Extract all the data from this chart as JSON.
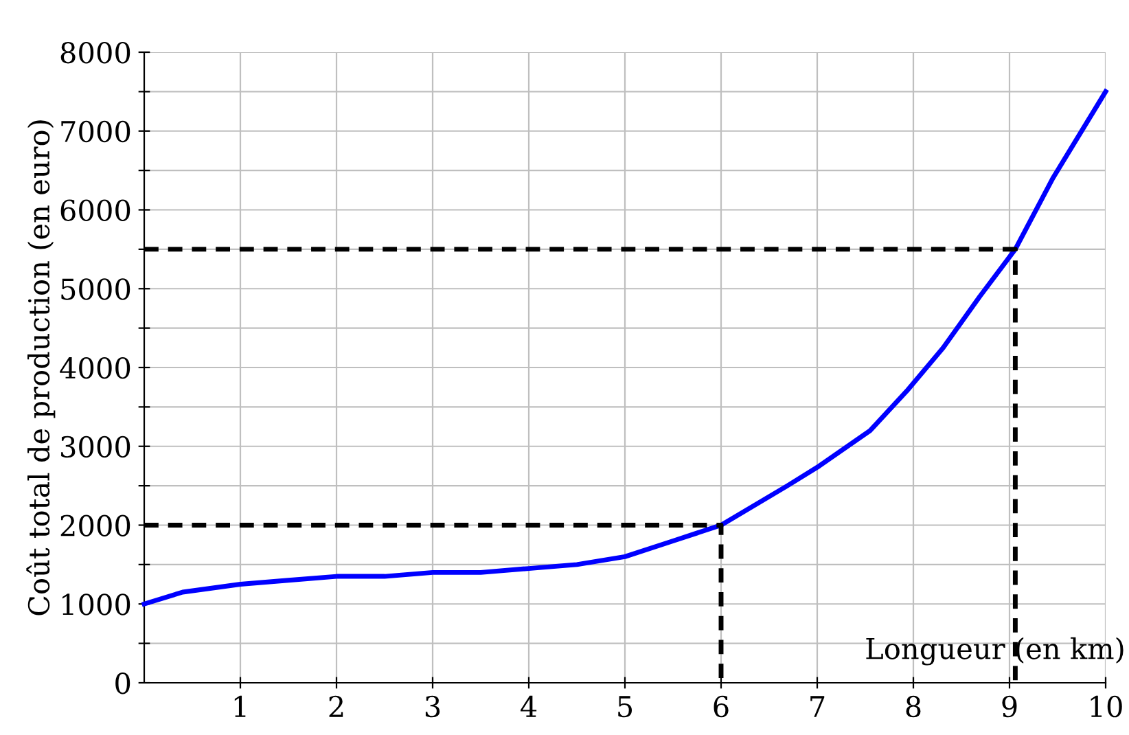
{
  "chart_data": {
    "type": "line",
    "xlabel": "Longueur (en km)",
    "ylabel": "Coût total de production (en euro)",
    "xlim": [
      0,
      10
    ],
    "ylim": [
      0,
      8000
    ],
    "xticks": [
      1,
      2,
      3,
      4,
      5,
      6,
      7,
      8,
      9,
      10
    ],
    "yticks": [
      0,
      {
        "value": 500,
        "label": null
      },
      1000,
      {
        "value": 1500,
        "label": null
      },
      2000,
      {
        "value": 2500,
        "label": null
      },
      3000,
      {
        "value": 3500,
        "label": null
      },
      4000,
      {
        "value": 4500,
        "label": null
      },
      5000,
      {
        "value": 5500,
        "label": null
      },
      6000,
      {
        "value": 6500,
        "label": null
      },
      7000,
      {
        "value": 7500,
        "label": null
      },
      8000
    ],
    "grid": true,
    "legend": false,
    "series": [
      {
        "color": "#0000ff",
        "line_style": "solid",
        "x": [
          0,
          0.4,
          1,
          1.5,
          2,
          2.5,
          3,
          3.5,
          4,
          4.5,
          5,
          5.5,
          6,
          6.69,
          7.02,
          7.55,
          7.93,
          8.31,
          8.69,
          9.06,
          9.45,
          10
        ],
        "values": [
          1000,
          1150,
          1250,
          1300,
          1350,
          1350,
          1400,
          1400,
          1450,
          1500,
          1600,
          1800,
          2000,
          2500,
          2750,
          3200,
          3700,
          4250,
          4900,
          5500,
          6400,
          7500
        ]
      },
      {
        "color": "#000000",
        "line_style": "dashed",
        "x": [
          0,
          6,
          6
        ],
        "values": [
          2000,
          2000,
          0
        ]
      },
      {
        "color": "#000000",
        "line_style": "dashed",
        "x": [
          0,
          9.06,
          9.06
        ],
        "values": [
          5500,
          5500,
          0
        ]
      }
    ]
  }
}
